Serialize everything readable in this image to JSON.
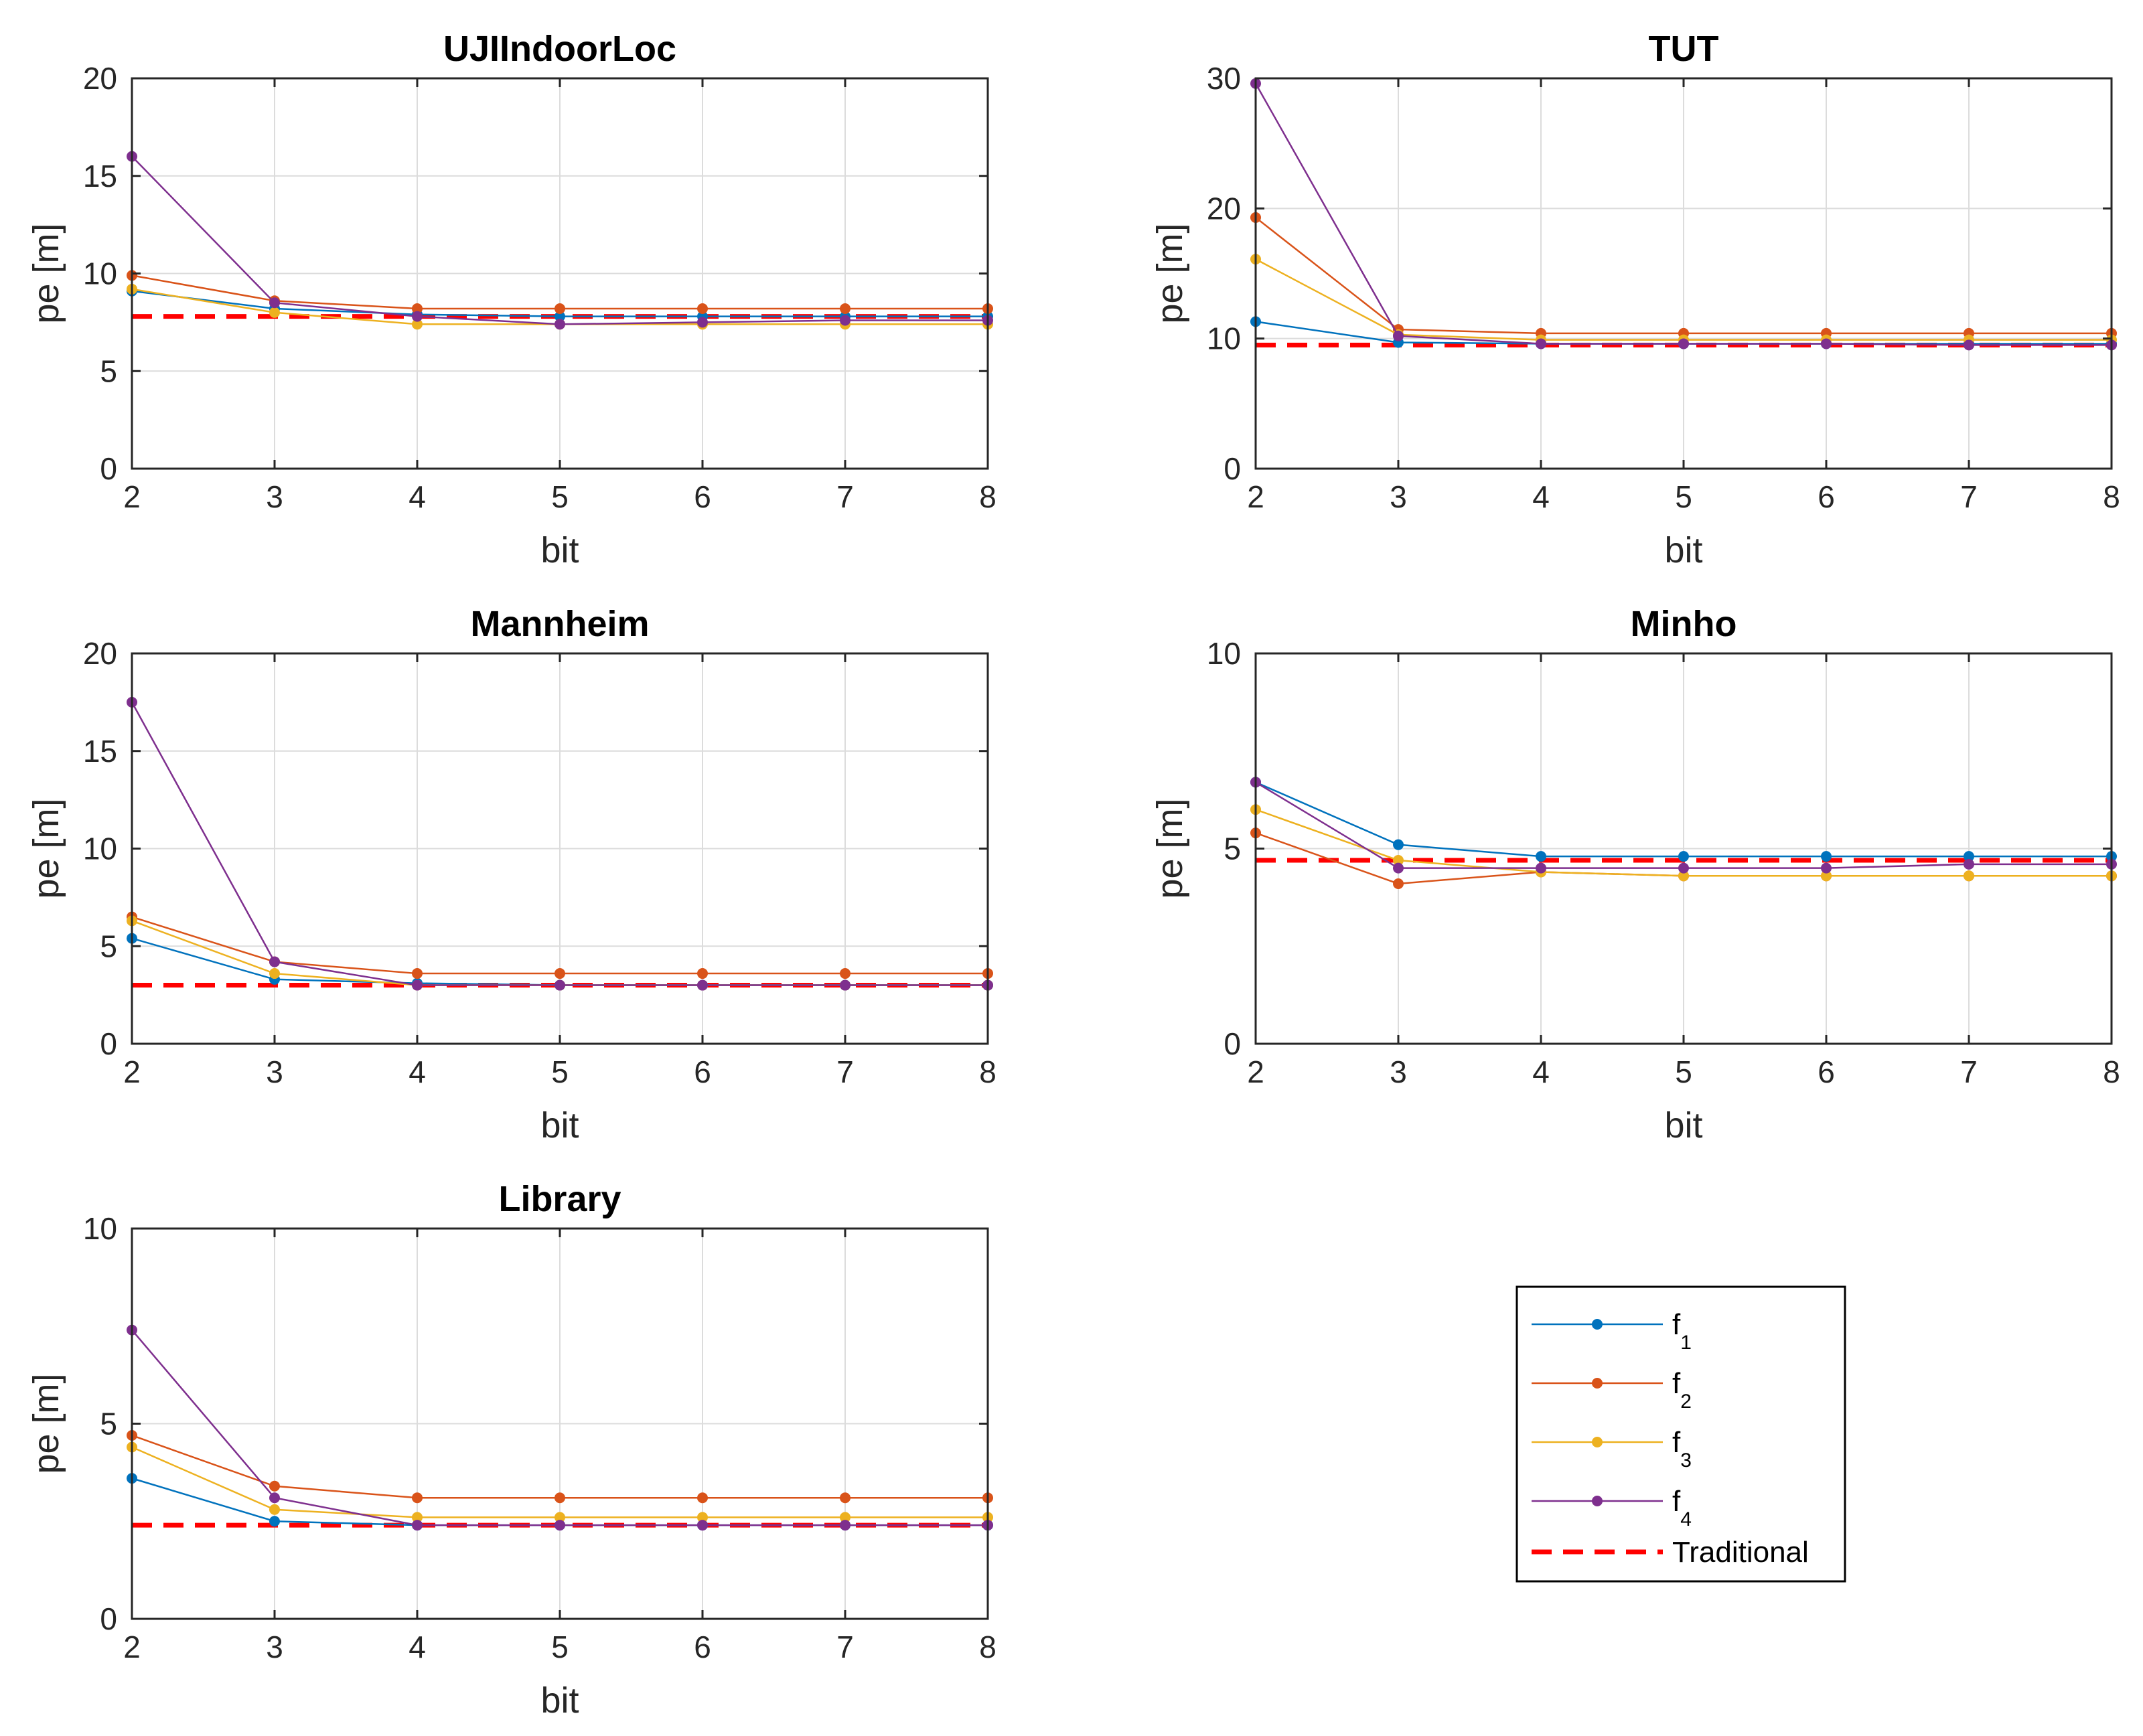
{
  "colors": {
    "f1": "#0072BD",
    "f2": "#D95319",
    "f3": "#EDB120",
    "f4": "#7E2F8E",
    "traditional": "#FF0000",
    "grid": "#DCDCDC",
    "axis": "#262626"
  },
  "legend": {
    "entries": [
      {
        "key": "f1",
        "base": "f",
        "sub": "1",
        "style": "solid-marker"
      },
      {
        "key": "f2",
        "base": "f",
        "sub": "2",
        "style": "solid-marker"
      },
      {
        "key": "f3",
        "base": "f",
        "sub": "3",
        "style": "solid-marker"
      },
      {
        "key": "f4",
        "base": "f",
        "sub": "4",
        "style": "solid-marker"
      },
      {
        "key": "traditional",
        "label": "Traditional",
        "style": "dashed"
      }
    ],
    "placement": "bottom-right"
  },
  "chart_data": [
    {
      "type": "line",
      "title": "UJIIndoorLoc",
      "xlabel": "bit",
      "ylabel": "pe [m]",
      "x": [
        2,
        3,
        4,
        5,
        6,
        7,
        8
      ],
      "xticks": [
        "2",
        "3",
        "4",
        "5",
        "6",
        "7",
        "8"
      ],
      "yticks": [
        "0",
        "5",
        "10",
        "15",
        "20"
      ],
      "ytick_values": [
        0,
        5,
        10,
        15,
        20
      ],
      "xlim": [
        2,
        8
      ],
      "ylim": [
        0,
        20
      ],
      "grid": true,
      "series": [
        {
          "name": "f1",
          "values": [
            9.1,
            8.2,
            7.9,
            7.8,
            7.8,
            7.8,
            7.8
          ]
        },
        {
          "name": "f2",
          "values": [
            9.9,
            8.6,
            8.2,
            8.2,
            8.2,
            8.2,
            8.2
          ]
        },
        {
          "name": "f3",
          "values": [
            9.2,
            8.0,
            7.4,
            7.4,
            7.4,
            7.4,
            7.4
          ]
        },
        {
          "name": "f4",
          "values": [
            16.0,
            8.5,
            7.8,
            7.4,
            7.5,
            7.6,
            7.6
          ]
        }
      ],
      "traditional": 7.8
    },
    {
      "type": "line",
      "title": "TUT",
      "xlabel": "bit",
      "ylabel": "pe [m]",
      "x": [
        2,
        3,
        4,
        5,
        6,
        7,
        8
      ],
      "xticks": [
        "2",
        "3",
        "4",
        "5",
        "6",
        "7",
        "8"
      ],
      "yticks": [
        "0",
        "10",
        "20",
        "30"
      ],
      "ytick_values": [
        0,
        10,
        20,
        30
      ],
      "xlim": [
        2,
        8
      ],
      "ylim": [
        0,
        30
      ],
      "grid": true,
      "series": [
        {
          "name": "f1",
          "values": [
            11.3,
            9.7,
            9.6,
            9.6,
            9.6,
            9.6,
            9.6
          ]
        },
        {
          "name": "f2",
          "values": [
            19.3,
            10.7,
            10.4,
            10.4,
            10.4,
            10.4,
            10.4
          ]
        },
        {
          "name": "f3",
          "values": [
            16.1,
            10.3,
            9.9,
            9.9,
            9.9,
            9.9,
            9.9
          ]
        },
        {
          "name": "f4",
          "values": [
            29.6,
            10.2,
            9.6,
            9.6,
            9.6,
            9.5,
            9.5
          ]
        }
      ],
      "traditional": 9.5
    },
    {
      "type": "line",
      "title": "Mannheim",
      "xlabel": "bit",
      "ylabel": "pe [m]",
      "x": [
        2,
        3,
        4,
        5,
        6,
        7,
        8
      ],
      "xticks": [
        "2",
        "3",
        "4",
        "5",
        "6",
        "7",
        "8"
      ],
      "yticks": [
        "0",
        "5",
        "10",
        "15",
        "20"
      ],
      "ytick_values": [
        0,
        5,
        10,
        15,
        20
      ],
      "xlim": [
        2,
        8
      ],
      "ylim": [
        0,
        20
      ],
      "grid": true,
      "series": [
        {
          "name": "f1",
          "values": [
            5.4,
            3.3,
            3.1,
            3.0,
            3.0,
            3.0,
            3.0
          ]
        },
        {
          "name": "f2",
          "values": [
            6.5,
            4.2,
            3.6,
            3.6,
            3.6,
            3.6,
            3.6
          ]
        },
        {
          "name": "f3",
          "values": [
            6.3,
            3.6,
            3.0,
            3.0,
            3.0,
            3.0,
            3.0
          ]
        },
        {
          "name": "f4",
          "values": [
            17.5,
            4.2,
            3.0,
            3.0,
            3.0,
            3.0,
            3.0
          ]
        }
      ],
      "traditional": 3.0
    },
    {
      "type": "line",
      "title": "Minho",
      "xlabel": "bit",
      "ylabel": "pe [m]",
      "x": [
        2,
        3,
        4,
        5,
        6,
        7,
        8
      ],
      "xticks": [
        "2",
        "3",
        "4",
        "5",
        "6",
        "7",
        "8"
      ],
      "yticks": [
        "0",
        "5",
        "10"
      ],
      "ytick_values": [
        0,
        5,
        10
      ],
      "xlim": [
        2,
        8
      ],
      "ylim": [
        0,
        10
      ],
      "grid": true,
      "series": [
        {
          "name": "f1",
          "values": [
            6.7,
            5.1,
            4.8,
            4.8,
            4.8,
            4.8,
            4.8
          ]
        },
        {
          "name": "f2",
          "values": [
            5.4,
            4.1,
            4.4,
            4.3,
            4.3,
            4.3,
            4.3
          ]
        },
        {
          "name": "f3",
          "values": [
            6.0,
            4.7,
            4.4,
            4.3,
            4.3,
            4.3,
            4.3
          ]
        },
        {
          "name": "f4",
          "values": [
            6.7,
            4.5,
            4.5,
            4.5,
            4.5,
            4.6,
            4.6
          ]
        }
      ],
      "traditional": 4.7
    },
    {
      "type": "line",
      "title": "Library",
      "xlabel": "bit",
      "ylabel": "pe [m]",
      "x": [
        2,
        3,
        4,
        5,
        6,
        7,
        8
      ],
      "xticks": [
        "2",
        "3",
        "4",
        "5",
        "6",
        "7",
        "8"
      ],
      "yticks": [
        "0",
        "5",
        "10"
      ],
      "ytick_values": [
        0,
        5,
        10
      ],
      "xlim": [
        2,
        8
      ],
      "ylim": [
        0,
        10
      ],
      "grid": true,
      "series": [
        {
          "name": "f1",
          "values": [
            3.6,
            2.5,
            2.4,
            2.4,
            2.4,
            2.4,
            2.4
          ]
        },
        {
          "name": "f2",
          "values": [
            4.7,
            3.4,
            3.1,
            3.1,
            3.1,
            3.1,
            3.1
          ]
        },
        {
          "name": "f3",
          "values": [
            4.4,
            2.8,
            2.6,
            2.6,
            2.6,
            2.6,
            2.6
          ]
        },
        {
          "name": "f4",
          "values": [
            7.4,
            3.1,
            2.4,
            2.4,
            2.4,
            2.4,
            2.4
          ]
        }
      ],
      "traditional": 2.4
    }
  ]
}
